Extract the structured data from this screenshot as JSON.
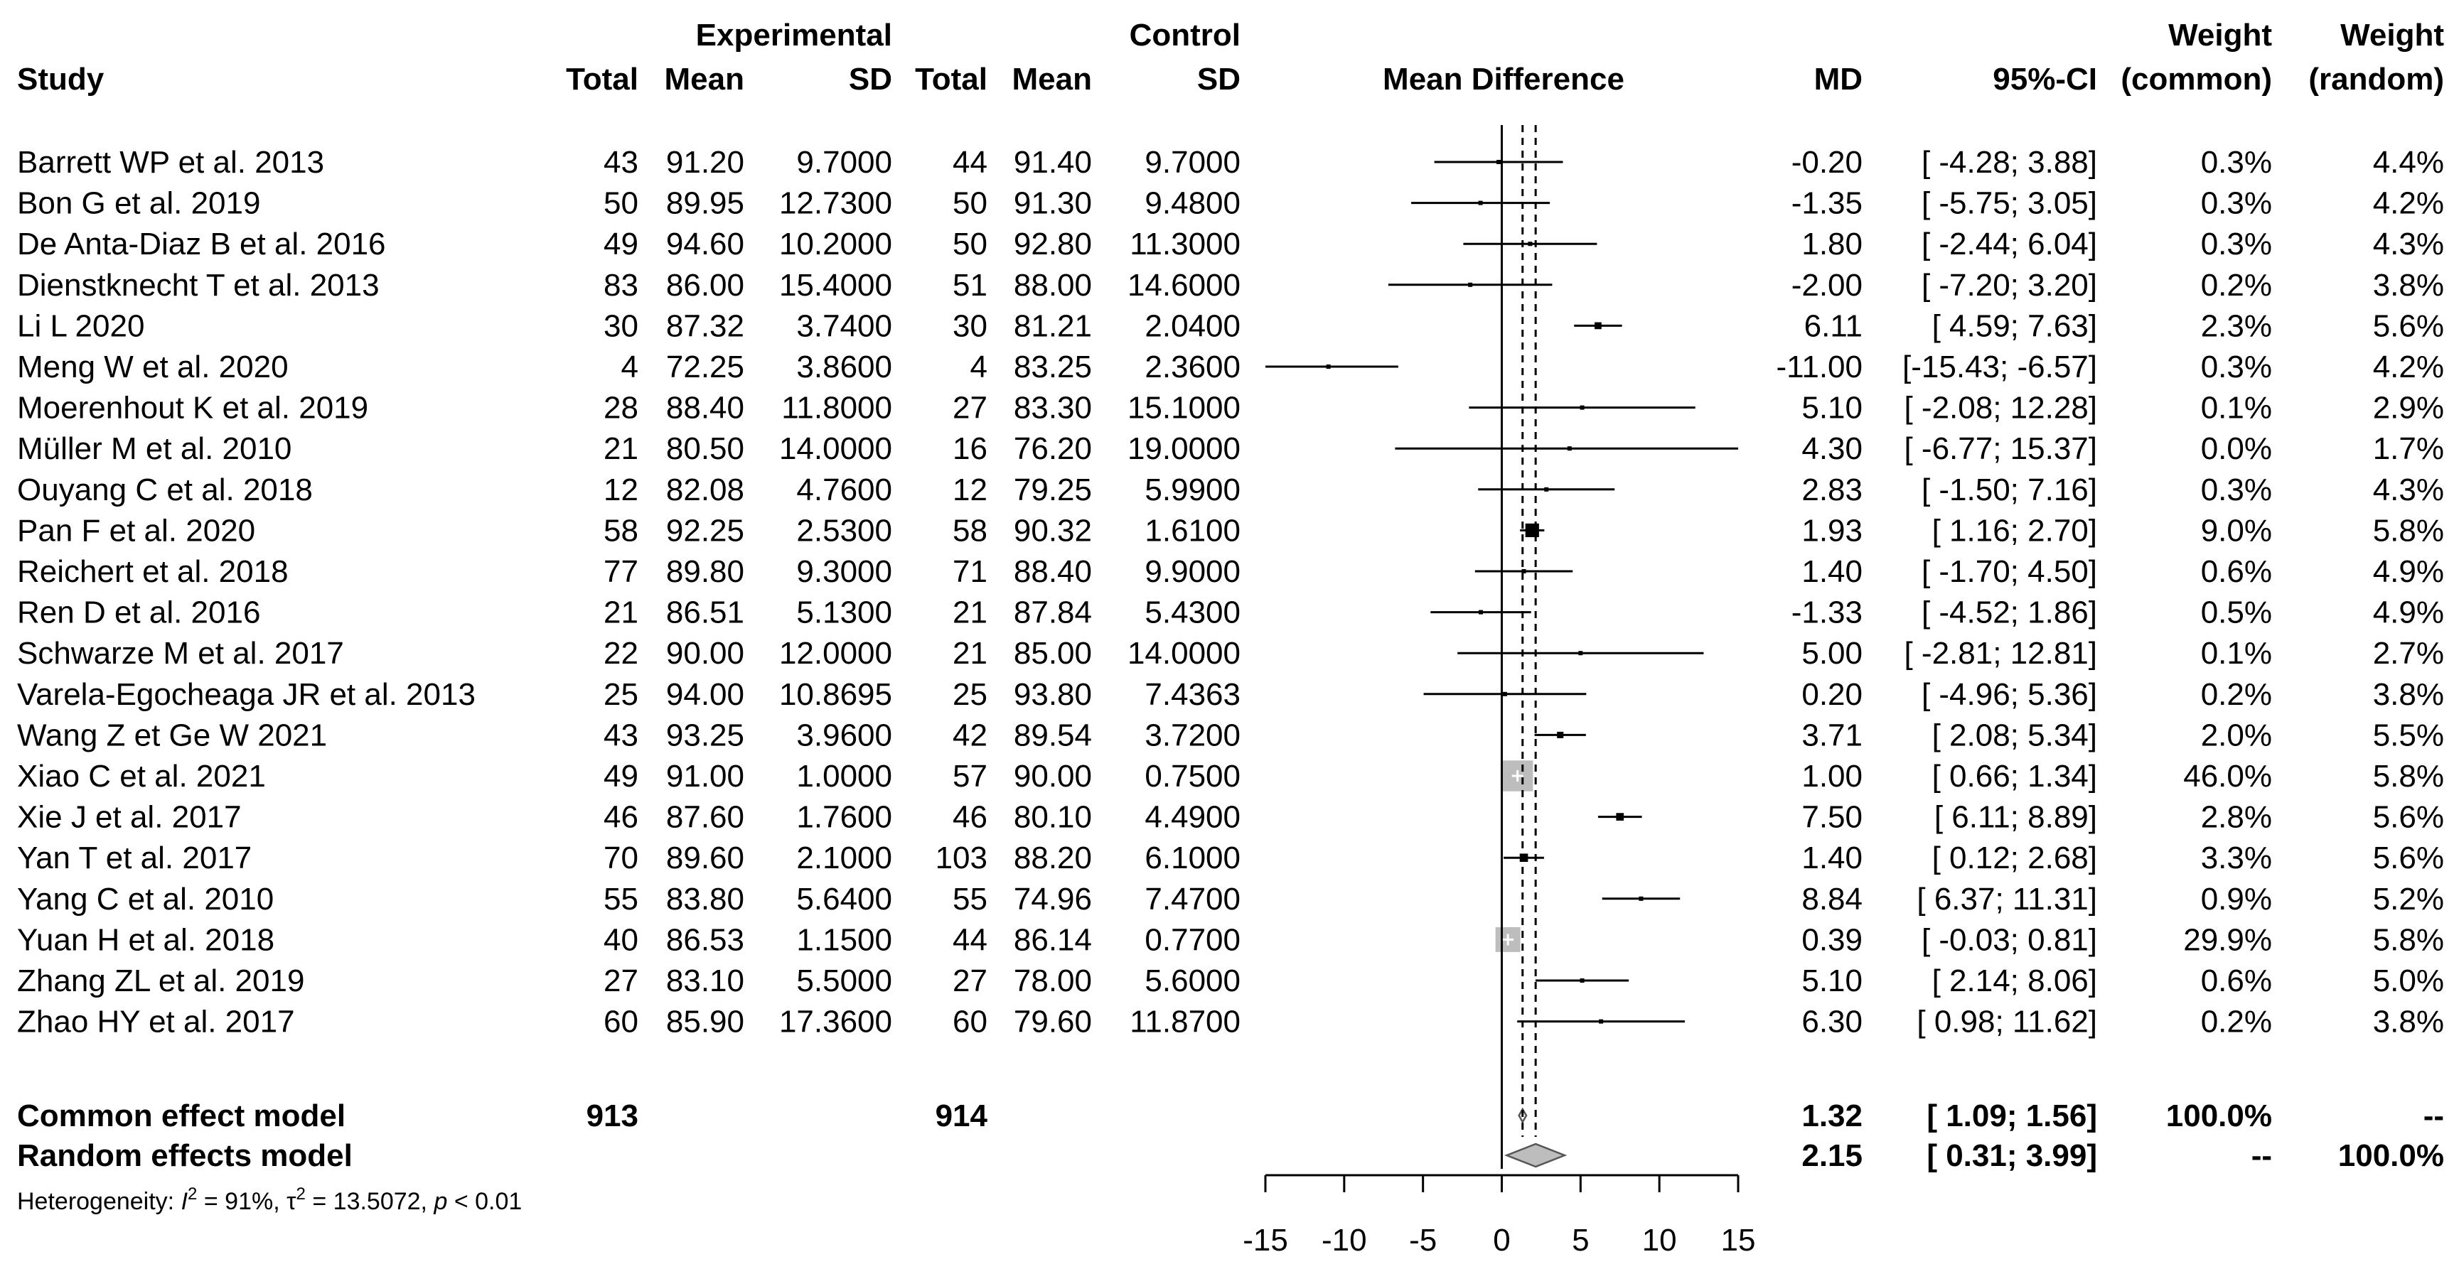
{
  "chart_data": {
    "type": "forest",
    "headers": {
      "study": "Study",
      "experimental_group": "Experimental",
      "control_group": "Control",
      "total": "Total",
      "mean": "Mean",
      "sd": "SD",
      "plot": "Mean Difference",
      "md": "MD",
      "ci": "95%-CI",
      "weight": "Weight",
      "common": "(common)",
      "random": "(random)"
    },
    "studies": [
      {
        "study": "Barrett WP et al. 2013",
        "e_total": "43",
        "e_mean": "91.20",
        "e_sd": "9.7000",
        "c_total": "44",
        "c_mean": "91.40",
        "c_sd": "9.7000",
        "md_text": "-0.20",
        "ci_text": "[ -4.28;  3.88]",
        "w_common": "0.3%",
        "w_random": "4.4%",
        "md": -0.2,
        "lo": -4.28,
        "hi": 3.88,
        "w": 0.3
      },
      {
        "study": "Bon G et al. 2019",
        "e_total": "50",
        "e_mean": "89.95",
        "e_sd": "12.7300",
        "c_total": "50",
        "c_mean": "91.30",
        "c_sd": "9.4800",
        "md_text": "-1.35",
        "ci_text": "[ -5.75;  3.05]",
        "w_common": "0.3%",
        "w_random": "4.2%",
        "md": -1.35,
        "lo": -5.75,
        "hi": 3.05,
        "w": 0.3
      },
      {
        "study": "De Anta-Diaz B et al. 2016",
        "e_total": "49",
        "e_mean": "94.60",
        "e_sd": "10.2000",
        "c_total": "50",
        "c_mean": "92.80",
        "c_sd": "11.3000",
        "md_text": "1.80",
        "ci_text": "[ -2.44;  6.04]",
        "w_common": "0.3%",
        "w_random": "4.3%",
        "md": 1.8,
        "lo": -2.44,
        "hi": 6.04,
        "w": 0.3
      },
      {
        "study": "Dienstknecht T et al. 2013",
        "e_total": "83",
        "e_mean": "86.00",
        "e_sd": "15.4000",
        "c_total": "51",
        "c_mean": "88.00",
        "c_sd": "14.6000",
        "md_text": "-2.00",
        "ci_text": "[ -7.20;  3.20]",
        "w_common": "0.2%",
        "w_random": "3.8%",
        "md": -2.0,
        "lo": -7.2,
        "hi": 3.2,
        "w": 0.2
      },
      {
        "study": "Li L 2020",
        "e_total": "30",
        "e_mean": "87.32",
        "e_sd": "3.7400",
        "c_total": "30",
        "c_mean": "81.21",
        "c_sd": "2.0400",
        "md_text": "6.11",
        "ci_text": "[  4.59;  7.63]",
        "w_common": "2.3%",
        "w_random": "5.6%",
        "md": 6.11,
        "lo": 4.59,
        "hi": 7.63,
        "w": 2.3
      },
      {
        "study": "Meng W et al. 2020",
        "e_total": "4",
        "e_mean": "72.25",
        "e_sd": "3.8600",
        "c_total": "4",
        "c_mean": "83.25",
        "c_sd": "2.3600",
        "md_text": "-11.00",
        "ci_text": "[-15.43; -6.57]",
        "w_common": "0.3%",
        "w_random": "4.2%",
        "md": -11.0,
        "lo": -15.43,
        "hi": -6.57,
        "w": 0.3
      },
      {
        "study": "Moerenhout K et al.  2019",
        "e_total": "28",
        "e_mean": "88.40",
        "e_sd": "11.8000",
        "c_total": "27",
        "c_mean": "83.30",
        "c_sd": "15.1000",
        "md_text": "5.10",
        "ci_text": "[ -2.08; 12.28]",
        "w_common": "0.1%",
        "w_random": "2.9%",
        "md": 5.1,
        "lo": -2.08,
        "hi": 12.28,
        "w": 0.1
      },
      {
        "study": "Müller M et al. 2010",
        "e_total": "21",
        "e_mean": "80.50",
        "e_sd": "14.0000",
        "c_total": "16",
        "c_mean": "76.20",
        "c_sd": "19.0000",
        "md_text": "4.30",
        "ci_text": "[ -6.77; 15.37]",
        "w_common": "0.0%",
        "w_random": "1.7%",
        "md": 4.3,
        "lo": -6.77,
        "hi": 15.37,
        "w": 0.0
      },
      {
        "study": "Ouyang C et al. 2018",
        "e_total": "12",
        "e_mean": "82.08",
        "e_sd": "4.7600",
        "c_total": "12",
        "c_mean": "79.25",
        "c_sd": "5.9900",
        "md_text": "2.83",
        "ci_text": "[ -1.50;  7.16]",
        "w_common": "0.3%",
        "w_random": "4.3%",
        "md": 2.83,
        "lo": -1.5,
        "hi": 7.16,
        "w": 0.3
      },
      {
        "study": "Pan F et al. 2020",
        "e_total": "58",
        "e_mean": "92.25",
        "e_sd": "2.5300",
        "c_total": "58",
        "c_mean": "90.32",
        "c_sd": "1.6100",
        "md_text": "1.93",
        "ci_text": "[  1.16;  2.70]",
        "w_common": "9.0%",
        "w_random": "5.8%",
        "md": 1.93,
        "lo": 1.16,
        "hi": 2.7,
        "w": 9.0
      },
      {
        "study": "Reichert et al. 2018",
        "e_total": "77",
        "e_mean": "89.80",
        "e_sd": "9.3000",
        "c_total": "71",
        "c_mean": "88.40",
        "c_sd": "9.9000",
        "md_text": "1.40",
        "ci_text": "[ -1.70;  4.50]",
        "w_common": "0.6%",
        "w_random": "4.9%",
        "md": 1.4,
        "lo": -1.7,
        "hi": 4.5,
        "w": 0.6
      },
      {
        "study": "Ren D et al. 2016",
        "e_total": "21",
        "e_mean": "86.51",
        "e_sd": "5.1300",
        "c_total": "21",
        "c_mean": "87.84",
        "c_sd": "5.4300",
        "md_text": "-1.33",
        "ci_text": "[ -4.52;  1.86]",
        "w_common": "0.5%",
        "w_random": "4.9%",
        "md": -1.33,
        "lo": -4.52,
        "hi": 1.86,
        "w": 0.5
      },
      {
        "study": "Schwarze M et al. 2017",
        "e_total": "22",
        "e_mean": "90.00",
        "e_sd": "12.0000",
        "c_total": "21",
        "c_mean": "85.00",
        "c_sd": "14.0000",
        "md_text": "5.00",
        "ci_text": "[ -2.81; 12.81]",
        "w_common": "0.1%",
        "w_random": "2.7%",
        "md": 5.0,
        "lo": -2.81,
        "hi": 12.81,
        "w": 0.1
      },
      {
        "study": "Varela-Egocheaga JR et al.  2013",
        "e_total": "25",
        "e_mean": "94.00",
        "e_sd": "10.8695",
        "c_total": "25",
        "c_mean": "93.80",
        "c_sd": "7.4363",
        "md_text": "0.20",
        "ci_text": "[ -4.96;  5.36]",
        "w_common": "0.2%",
        "w_random": "3.8%",
        "md": 0.2,
        "lo": -4.96,
        "hi": 5.36,
        "w": 0.2
      },
      {
        "study": "Wang Z et Ge W 2021",
        "e_total": "43",
        "e_mean": "93.25",
        "e_sd": "3.9600",
        "c_total": "42",
        "c_mean": "89.54",
        "c_sd": "3.7200",
        "md_text": "3.71",
        "ci_text": "[  2.08;  5.34]",
        "w_common": "2.0%",
        "w_random": "5.5%",
        "md": 3.71,
        "lo": 2.08,
        "hi": 5.34,
        "w": 2.0
      },
      {
        "study": "Xiao C et al. 2021",
        "e_total": "49",
        "e_mean": "91.00",
        "e_sd": "1.0000",
        "c_total": "57",
        "c_mean": "90.00",
        "c_sd": "0.7500",
        "md_text": "1.00",
        "ci_text": "[  0.66;  1.34]",
        "w_common": "46.0%",
        "w_random": "5.8%",
        "md": 1.0,
        "lo": 0.66,
        "hi": 1.34,
        "w": 46.0
      },
      {
        "study": "Xie J et al.  2017",
        "e_total": "46",
        "e_mean": "87.60",
        "e_sd": "1.7600",
        "c_total": "46",
        "c_mean": "80.10",
        "c_sd": "4.4900",
        "md_text": "7.50",
        "ci_text": "[  6.11;  8.89]",
        "w_common": "2.8%",
        "w_random": "5.6%",
        "md": 7.5,
        "lo": 6.11,
        "hi": 8.89,
        "w": 2.8
      },
      {
        "study": "Yan T et al. 2017",
        "e_total": "70",
        "e_mean": "89.60",
        "e_sd": "2.1000",
        "c_total": "103",
        "c_mean": "88.20",
        "c_sd": "6.1000",
        "md_text": "1.40",
        "ci_text": "[  0.12;  2.68]",
        "w_common": "3.3%",
        "w_random": "5.6%",
        "md": 1.4,
        "lo": 0.12,
        "hi": 2.68,
        "w": 3.3
      },
      {
        "study": "Yang C et al. 2010",
        "e_total": "55",
        "e_mean": "83.80",
        "e_sd": "5.6400",
        "c_total": "55",
        "c_mean": "74.96",
        "c_sd": "7.4700",
        "md_text": "8.84",
        "ci_text": "[  6.37; 11.31]",
        "w_common": "0.9%",
        "w_random": "5.2%",
        "md": 8.84,
        "lo": 6.37,
        "hi": 11.31,
        "w": 0.9
      },
      {
        "study": "Yuan H et al. 2018",
        "e_total": "40",
        "e_mean": "86.53",
        "e_sd": "1.1500",
        "c_total": "44",
        "c_mean": "86.14",
        "c_sd": "0.7700",
        "md_text": "0.39",
        "ci_text": "[ -0.03;  0.81]",
        "w_common": "29.9%",
        "w_random": "5.8%",
        "md": 0.39,
        "lo": -0.03,
        "hi": 0.81,
        "w": 29.9
      },
      {
        "study": "Zhang ZL et al. 2019",
        "e_total": "27",
        "e_mean": "83.10",
        "e_sd": "5.5000",
        "c_total": "27",
        "c_mean": "78.00",
        "c_sd": "5.6000",
        "md_text": "5.10",
        "ci_text": "[  2.14;  8.06]",
        "w_common": "0.6%",
        "w_random": "5.0%",
        "md": 5.1,
        "lo": 2.14,
        "hi": 8.06,
        "w": 0.6
      },
      {
        "study": "Zhao HY et al. 2017",
        "e_total": "60",
        "e_mean": "85.90",
        "e_sd": "17.3600",
        "c_total": "60",
        "c_mean": "79.60",
        "c_sd": "11.8700",
        "md_text": "6.30",
        "ci_text": "[  0.98; 11.62]",
        "w_common": "0.2%",
        "w_random": "3.8%",
        "md": 6.3,
        "lo": 0.98,
        "hi": 11.62,
        "w": 0.2
      }
    ],
    "summaries": [
      {
        "label": "Common effect model",
        "e_total": "913",
        "c_total": "914",
        "md_text": "1.32",
        "ci_text": "[ 1.09; 1.56]",
        "w_common": "100.0%",
        "w_random": "--",
        "md": 1.32,
        "lo": 1.09,
        "hi": 1.56
      },
      {
        "label": "Random effects model",
        "e_total": "",
        "c_total": "",
        "md_text": "2.15",
        "ci_text": "[ 0.31; 3.99]",
        "w_common": "--",
        "w_random": "100.0%",
        "md": 2.15,
        "lo": 0.31,
        "hi": 3.99
      }
    ],
    "heterogeneity": {
      "prefix": "Heterogeneity: ",
      "i2": "I",
      "i2_sup": "2",
      "i2_val": " = 91%, ",
      "tau": "τ",
      "tau_sup": "2",
      "tau_val": " = 13.5072, ",
      "p": "p",
      "p_val": " < 0.01"
    },
    "axis": {
      "min": -15,
      "max": 15,
      "ticks": [
        -15,
        -10,
        -5,
        0,
        5,
        10,
        15
      ],
      "tick_labels": [
        "-15",
        "-10",
        "-5",
        "0",
        "5",
        "10",
        "15"
      ]
    },
    "reference_lines": {
      "null": 0,
      "common": 1.32,
      "random": 2.15
    },
    "colors": {
      "line": "#000000",
      "big_square": "#bdbdbd",
      "diamond_fill": "#bdbdbd",
      "diamond_stroke": "#555555"
    }
  }
}
